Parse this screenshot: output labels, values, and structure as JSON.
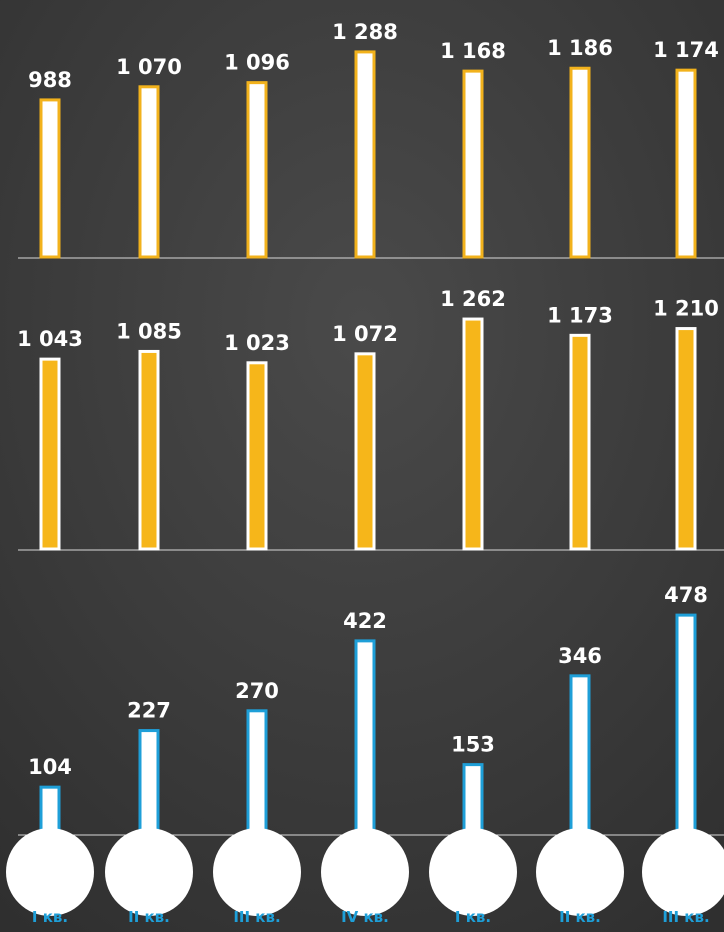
{
  "chart_data": [
    {
      "type": "bar",
      "values": [
        988,
        1070,
        1096,
        1288,
        1168,
        1186,
        1174
      ],
      "value_labels": [
        "988",
        "1 070",
        "1 096",
        "1 288",
        "1 168",
        "1 186",
        "1 174"
      ],
      "color": "#ffffff",
      "edge_color": "#f2b21c"
    },
    {
      "type": "bar",
      "values": [
        1043,
        1085,
        1023,
        1072,
        1262,
        1173,
        1210
      ],
      "value_labels": [
        "1 043",
        "1 085",
        "1 023",
        "1 072",
        "1 262",
        "1 173",
        "1 210"
      ],
      "color": "#f6b61a",
      "edge_color": "#ffffff"
    },
    {
      "type": "bar",
      "values": [
        104,
        227,
        270,
        422,
        153,
        346,
        478
      ],
      "value_labels": [
        "104",
        "227",
        "270",
        "422",
        "153",
        "346",
        "478"
      ],
      "categories": [
        "I кв.",
        "II кв.",
        "III кв.",
        "IV кв.",
        "I кв.",
        "II кв.",
        "III кв."
      ],
      "color": "#ffffff",
      "edge_color": "#1e9fd8"
    }
  ]
}
